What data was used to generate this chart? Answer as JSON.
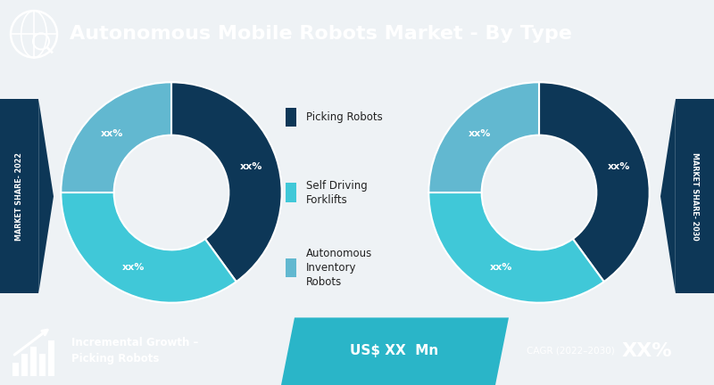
{
  "title": "Autonomous Mobile Robots Market - By Type",
  "header_bg": "#1b6d85",
  "header_text_color": "#ffffff",
  "bg_color": "#eef2f5",
  "donut_colors_dark": "#0d3757",
  "donut_colors_mid": "#40c8d8",
  "donut_colors_light": "#62b8d0",
  "donut_colors": [
    "#0d3757",
    "#40c8d8",
    "#62b8d0"
  ],
  "donut_slices_2022": [
    40,
    35,
    25
  ],
  "donut_slices_2030": [
    40,
    35,
    25
  ],
  "legend_labels": [
    "Picking Robots",
    "Self Driving\nForklifts",
    "Autonomous\nInventory\nRobots"
  ],
  "slice_labels": [
    "xx%",
    "xx%",
    "xx%"
  ],
  "label_2022": "MARKET SHARE- 2022",
  "label_2030": "MARKET SHARE- 2030",
  "arrow_bg": "#0d3757",
  "footer_bg1": "#1b6d85",
  "footer_bg2": "#2ab5c8",
  "footer_text1": "Incremental Growth –\nPicking Robots",
  "footer_text2": "US$ XX  Mn",
  "footer_text3": "CAGR (2022–2030)",
  "footer_text3b": "XX%",
  "footer_text_color": "#ffffff"
}
